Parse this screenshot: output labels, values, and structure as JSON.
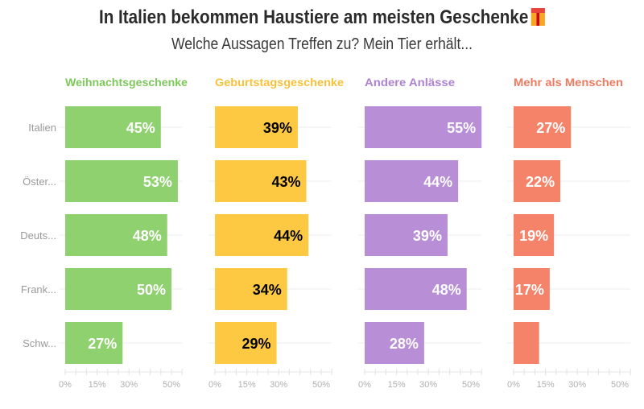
{
  "chart_data": {
    "type": "bar",
    "orientation": "horizontal",
    "title": "In Italien bekommen Haustiere am meisten Geschenke",
    "title_icon": "gift-icon",
    "subtitle": "Welche Aussagen Treffen zu? Mein Tier erhält...",
    "categories": [
      "Italien",
      "Öster...",
      "Deuts...",
      "Frank...",
      "Schw..."
    ],
    "xlim": [
      0,
      55
    ],
    "x_ticks": [
      "0%",
      "15%",
      "30%",
      "50%"
    ],
    "x_tick_values": [
      0,
      15,
      30,
      50
    ],
    "grid": false,
    "panels": [
      {
        "name": "Weihnachtsgeschenke",
        "color": "#8fd16f",
        "header_color": "#7cc95a",
        "label_color": "#ffffff",
        "values": [
          45,
          53,
          48,
          50,
          27
        ],
        "labels": [
          "45%",
          "53%",
          "48%",
          "50%",
          "27%"
        ]
      },
      {
        "name": "Geburtstagsgeschenke",
        "color": "#fdc943",
        "header_color": "#f7c23a",
        "label_color": "#000000",
        "values": [
          39,
          43,
          44,
          34,
          29
        ],
        "labels": [
          "39%",
          "43%",
          "44%",
          "34%",
          "29%"
        ]
      },
      {
        "name": "Andere Anlässe",
        "color": "#b88fd6",
        "header_color": "#ae82d2",
        "label_color": "#ffffff",
        "values": [
          55,
          44,
          39,
          48,
          28
        ],
        "labels": [
          "55%",
          "44%",
          "39%",
          "48%",
          "28%"
        ]
      },
      {
        "name": "Mehr als Menschen",
        "color": "#f5836a",
        "header_color": "#ef7a60",
        "label_color": "#ffffff",
        "values": [
          27,
          22,
          19,
          17,
          12
        ],
        "labels": [
          "27%",
          "22%",
          "19%",
          "17%",
          ""
        ]
      }
    ]
  }
}
